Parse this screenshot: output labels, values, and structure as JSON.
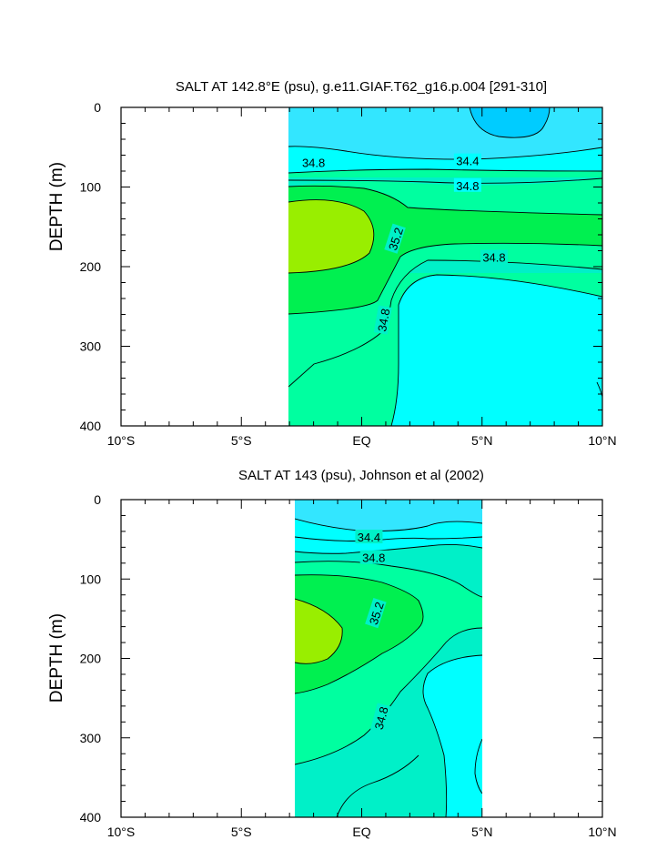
{
  "colors": {
    "34.0": "#00ccff",
    "34.4": "#33e6ff",
    "34.6": "#00ffff",
    "34.8": "#00f0c8",
    "35.0": "#00ffa0",
    "35.2": "#00f050",
    "35.4": "#99ee00"
  },
  "chart_data": [
    {
      "type": "contour",
      "title": "SALT AT 142.8°E (psu), g.e11.GIAF.T62_g16.p.004 [291-310]",
      "ylabel": "DEPTH (m)",
      "xlim": [
        -10,
        10
      ],
      "ylim": [
        400,
        0
      ],
      "x_ticks": [
        -10,
        -5,
        0,
        5,
        10
      ],
      "x_tick_labels": [
        "10°S",
        "5°S",
        "EQ",
        "5°N",
        "10°N"
      ],
      "y_ticks": [
        0,
        100,
        200,
        300,
        400
      ],
      "y_tick_labels": [
        "0",
        "100",
        "200",
        "300",
        "400"
      ],
      "data_extent": {
        "lat": [
          -3.1,
          10
        ],
        "depth": [
          5,
          400
        ]
      },
      "contour_labels": [
        {
          "text": "34.4",
          "lat": 4.4,
          "depth": 67
        },
        {
          "text": "34.8",
          "lat": -2.0,
          "depth": 69
        },
        {
          "text": "34.8",
          "lat": 4.4,
          "depth": 98
        },
        {
          "text": "35.2",
          "lat": 1.4,
          "depth": 165
        },
        {
          "text": "34.8",
          "lat": 5.5,
          "depth": 188
        },
        {
          "text": "34.8",
          "lat": 0.9,
          "depth": 267
        }
      ]
    },
    {
      "type": "contour",
      "title": "SALT AT 143 (psu), Johnson et al (2002)",
      "ylabel": "DEPTH (m)",
      "xlim": [
        -10,
        10
      ],
      "ylim": [
        400,
        0
      ],
      "x_ticks": [
        -10,
        -5,
        0,
        5,
        10
      ],
      "x_tick_labels": [
        "10°S",
        "5°S",
        "EQ",
        "5°N",
        "10°N"
      ],
      "y_ticks": [
        0,
        100,
        200,
        300,
        400
      ],
      "y_tick_labels": [
        "0",
        "100",
        "200",
        "300",
        "400"
      ],
      "data_extent": {
        "lat": [
          -2.8,
          5
        ],
        "depth": [
          5,
          400
        ]
      },
      "contour_labels": [
        {
          "text": "34.4",
          "lat": 0.3,
          "depth": 47
        },
        {
          "text": "34.8",
          "lat": 0.5,
          "depth": 73
        },
        {
          "text": "35.2",
          "lat": 0.6,
          "depth": 143
        },
        {
          "text": "34.8",
          "lat": 0.8,
          "depth": 275
        }
      ]
    }
  ]
}
